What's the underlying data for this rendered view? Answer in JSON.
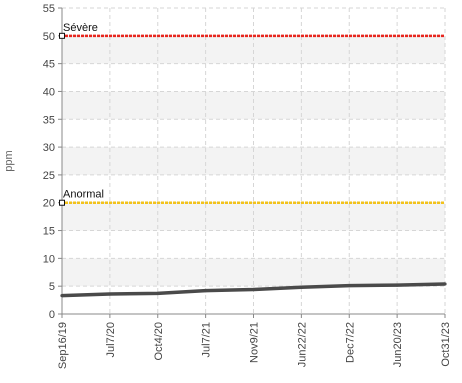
{
  "chart_data": {
    "type": "line",
    "ylabel": "ppm",
    "ylim": [
      0,
      55
    ],
    "y_ticks": [
      "0",
      "5",
      "10",
      "15",
      "20",
      "25",
      "30",
      "35",
      "40",
      "45",
      "50",
      "55"
    ],
    "x_tick_labels": [
      "Sep16/19",
      "Jul7/20",
      "Oct4/20",
      "Jul7/21",
      "Nov9/21",
      "Jun22/22",
      "Dec7/22",
      "Jun20/23",
      "Oct31/23"
    ],
    "grid": true,
    "legend": "none",
    "thresholds": [
      {
        "label": "Sévère",
        "value": 50,
        "color": "#e8261e"
      },
      {
        "label": "Anormal",
        "value": 20,
        "color": "#f2c21b"
      }
    ],
    "series": [
      {
        "color": "#4a4a4a",
        "x": [
          "Sep16/19",
          "Jul7/20",
          "Oct4/20",
          "Jul7/21",
          "Nov9/21",
          "Jun22/22",
          "Dec7/22",
          "Jun20/23",
          "Oct31/23"
        ],
        "values": [
          3.3,
          3.6,
          3.7,
          4.2,
          4.4,
          4.8,
          5.1,
          5.2,
          5.4
        ]
      }
    ]
  }
}
